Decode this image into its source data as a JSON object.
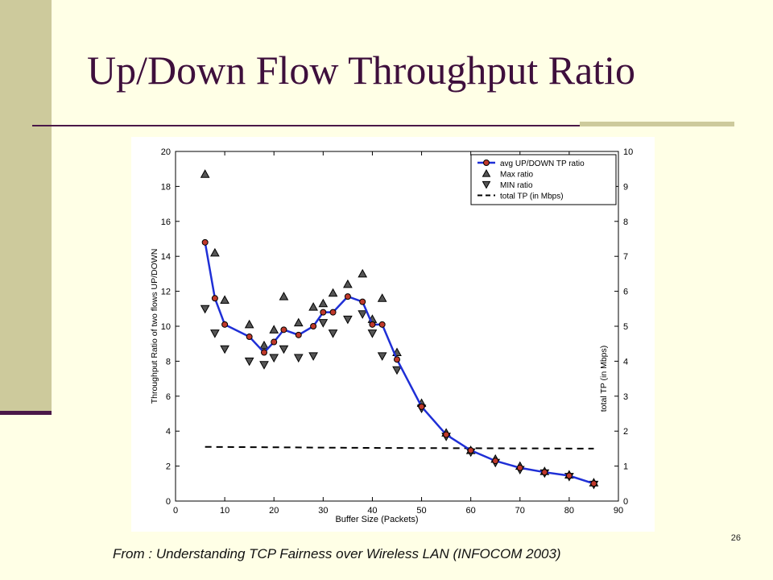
{
  "slide": {
    "title": "Up/Down Flow Throughput Ratio",
    "caption": "From : Understanding TCP Fairness over Wireless LAN (INFOCOM 2003)",
    "page_number": "26"
  },
  "colors": {
    "background": "#ffffe6",
    "side_band": "#cdca9c",
    "accent": "#4a1848",
    "title": "#3e0f3c",
    "avg_line": "#1f2fd6",
    "avg_marker": "#c0392b"
  },
  "chart_data": {
    "type": "line",
    "xlabel": "Buffer Size (Packets)",
    "ylabel": "Throughput Ratio of two flows UP/DOWN",
    "y2label": "total TP (in Mbps)",
    "xlim": [
      0,
      90
    ],
    "ylim": [
      0,
      20
    ],
    "y2lim": [
      0,
      10
    ],
    "x_ticks": [
      "0",
      "10",
      "20",
      "30",
      "40",
      "50",
      "60",
      "70",
      "80",
      "90"
    ],
    "y_ticks": [
      "0",
      "2",
      "4",
      "6",
      "8",
      "10",
      "12",
      "14",
      "16",
      "18",
      "20"
    ],
    "y2_ticks": [
      "0",
      "1",
      "2",
      "3",
      "4",
      "5",
      "6",
      "7",
      "8",
      "9",
      "10"
    ],
    "legend_position": "top-right",
    "series": [
      {
        "name": "avg UP/DOWN TP ratio",
        "style": "solid-line-circles",
        "points": [
          [
            6,
            14.8
          ],
          [
            8,
            11.6
          ],
          [
            10,
            10.1
          ],
          [
            15,
            9.4
          ],
          [
            18,
            8.5
          ],
          [
            20,
            9.1
          ],
          [
            22,
            9.8
          ],
          [
            25,
            9.5
          ],
          [
            28,
            10.0
          ],
          [
            30,
            10.8
          ],
          [
            32,
            10.8
          ],
          [
            35,
            11.7
          ],
          [
            38,
            11.4
          ],
          [
            40,
            10.1
          ],
          [
            42,
            10.1
          ],
          [
            45,
            8.1
          ],
          [
            50,
            5.4
          ],
          [
            55,
            3.8
          ],
          [
            60,
            2.9
          ],
          [
            65,
            2.3
          ],
          [
            70,
            1.9
          ],
          [
            75,
            1.65
          ],
          [
            80,
            1.45
          ],
          [
            85,
            1.0
          ]
        ]
      },
      {
        "name": "Max ratio",
        "style": "up-triangles",
        "points": [
          [
            6,
            18.7
          ],
          [
            8,
            14.2
          ],
          [
            10,
            11.5
          ],
          [
            15,
            10.1
          ],
          [
            18,
            8.9
          ],
          [
            20,
            9.8
          ],
          [
            22,
            11.7
          ],
          [
            25,
            10.2
          ],
          [
            28,
            11.1
          ],
          [
            30,
            11.3
          ],
          [
            32,
            11.9
          ],
          [
            35,
            12.4
          ],
          [
            38,
            13.0
          ],
          [
            40,
            10.4
          ],
          [
            42,
            11.6
          ],
          [
            45,
            8.5
          ],
          [
            50,
            5.6
          ],
          [
            55,
            3.9
          ],
          [
            60,
            2.9
          ],
          [
            65,
            2.4
          ],
          [
            70,
            2.0
          ],
          [
            75,
            1.7
          ],
          [
            80,
            1.5
          ],
          [
            85,
            1.05
          ]
        ]
      },
      {
        "name": "MIN ratio",
        "style": "down-triangles",
        "points": [
          [
            6,
            11.0
          ],
          [
            8,
            9.6
          ],
          [
            10,
            8.7
          ],
          [
            15,
            8.0
          ],
          [
            18,
            7.8
          ],
          [
            20,
            8.2
          ],
          [
            22,
            8.7
          ],
          [
            25,
            8.2
          ],
          [
            28,
            8.3
          ],
          [
            30,
            10.2
          ],
          [
            32,
            9.6
          ],
          [
            35,
            10.4
          ],
          [
            38,
            10.7
          ],
          [
            40,
            9.6
          ],
          [
            42,
            8.3
          ],
          [
            45,
            7.5
          ],
          [
            50,
            5.3
          ],
          [
            55,
            3.7
          ],
          [
            60,
            2.8
          ],
          [
            65,
            2.2
          ],
          [
            70,
            1.8
          ],
          [
            75,
            1.6
          ],
          [
            80,
            1.4
          ],
          [
            85,
            0.95
          ]
        ]
      },
      {
        "name": "total TP (in Mbps)",
        "style": "dashed-line",
        "axis": "right",
        "points": [
          [
            6,
            1.55
          ],
          [
            40,
            1.52
          ],
          [
            85,
            1.5
          ]
        ]
      }
    ]
  }
}
